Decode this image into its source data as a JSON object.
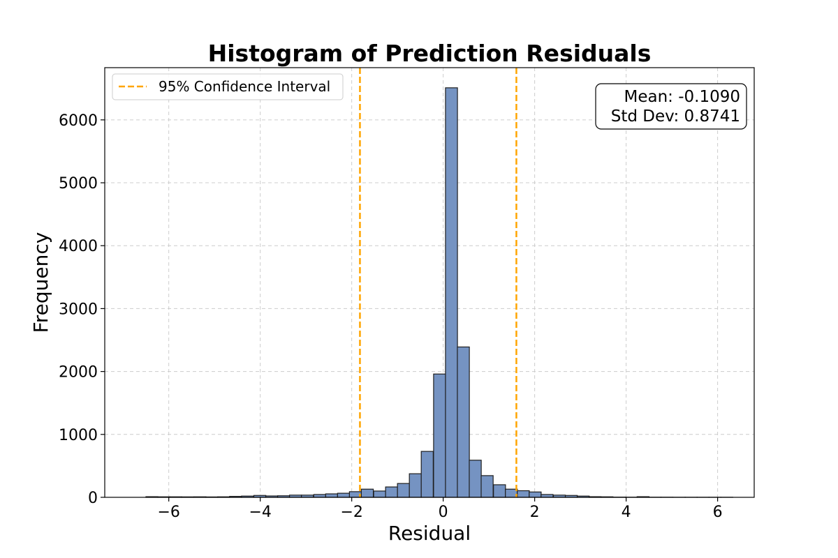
{
  "chart_data": {
    "type": "bar",
    "title": "Histogram of Prediction Residuals",
    "xlabel": "Residual",
    "ylabel": "Frequency",
    "xlim": [
      -7.4,
      6.8
    ],
    "ylim": [
      0,
      6830
    ],
    "xticks": [
      -6,
      -4,
      -2,
      0,
      2,
      4,
      6
    ],
    "yticks": [
      0,
      1000,
      2000,
      3000,
      4000,
      5000,
      6000
    ],
    "bin_width": 0.262,
    "bins": [
      {
        "x0": -6.5,
        "value": 10
      },
      {
        "x0": -6.24,
        "value": 8
      },
      {
        "x0": -5.98,
        "value": 8
      },
      {
        "x0": -5.72,
        "value": 7
      },
      {
        "x0": -5.45,
        "value": 8
      },
      {
        "x0": -5.19,
        "value": 6
      },
      {
        "x0": -4.93,
        "value": 8
      },
      {
        "x0": -4.67,
        "value": 15
      },
      {
        "x0": -4.41,
        "value": 20
      },
      {
        "x0": -4.14,
        "value": 30
      },
      {
        "x0": -3.88,
        "value": 22
      },
      {
        "x0": -3.62,
        "value": 25
      },
      {
        "x0": -3.36,
        "value": 35
      },
      {
        "x0": -3.1,
        "value": 35
      },
      {
        "x0": -2.83,
        "value": 45
      },
      {
        "x0": -2.57,
        "value": 55
      },
      {
        "x0": -2.31,
        "value": 65
      },
      {
        "x0": -2.05,
        "value": 90
      },
      {
        "x0": -1.79,
        "value": 130
      },
      {
        "x0": -1.52,
        "value": 100
      },
      {
        "x0": -1.26,
        "value": 165
      },
      {
        "x0": -1.0,
        "value": 220
      },
      {
        "x0": -0.74,
        "value": 375
      },
      {
        "x0": -0.48,
        "value": 730
      },
      {
        "x0": -0.21,
        "value": 1960
      },
      {
        "x0": 0.05,
        "value": 6510
      },
      {
        "x0": 0.31,
        "value": 2390
      },
      {
        "x0": 0.57,
        "value": 590
      },
      {
        "x0": 0.83,
        "value": 345
      },
      {
        "x0": 1.1,
        "value": 200
      },
      {
        "x0": 1.36,
        "value": 130
      },
      {
        "x0": 1.62,
        "value": 105
      },
      {
        "x0": 1.88,
        "value": 85
      },
      {
        "x0": 2.14,
        "value": 45
      },
      {
        "x0": 2.41,
        "value": 35
      },
      {
        "x0": 2.67,
        "value": 30
      },
      {
        "x0": 2.93,
        "value": 20
      },
      {
        "x0": 3.19,
        "value": 10
      },
      {
        "x0": 3.45,
        "value": 8
      },
      {
        "x0": 3.72,
        "value": 3
      },
      {
        "x0": 3.98,
        "value": 2
      },
      {
        "x0": 4.24,
        "value": 10
      },
      {
        "x0": 4.5,
        "value": 2
      },
      {
        "x0": 4.76,
        "value": 2
      },
      {
        "x0": 5.03,
        "value": 1
      },
      {
        "x0": 5.29,
        "value": 1
      },
      {
        "x0": 5.55,
        "value": 1
      },
      {
        "x0": 5.81,
        "value": 1
      },
      {
        "x0": 6.07,
        "value": 1
      }
    ],
    "confidence_interval": {
      "label": "95% Confidence Interval",
      "lower": -1.82,
      "upper": 1.6
    },
    "stats": {
      "mean_label": "Mean: -0.1090",
      "std_label": "Std Dev: 0.8741"
    },
    "grid": true,
    "legend_position": "top-left",
    "stats_box_position": "top-right",
    "colors": {
      "bar_fill": "#7593c2",
      "bar_edge": "#1f1f1f",
      "ci_line": "#ffa500",
      "grid": "#cccccc",
      "axis": "#000000"
    }
  }
}
